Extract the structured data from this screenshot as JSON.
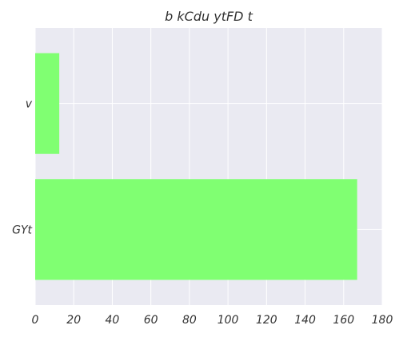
{
  "chart_data": {
    "type": "bar",
    "orientation": "horizontal",
    "title": "b kCdu ytFD t",
    "categories": [
      "GYt",
      "v"
    ],
    "values": [
      167,
      12.5
    ],
    "xlim": [
      0,
      180
    ],
    "xticks": [
      0,
      20,
      40,
      60,
      80,
      100,
      120,
      140,
      160,
      180
    ],
    "xlabel": "",
    "ylabel": "",
    "grid": true,
    "bar_color": "#80ff72",
    "background_color": "#eaeaf2",
    "grid_color": "#ffffff"
  }
}
